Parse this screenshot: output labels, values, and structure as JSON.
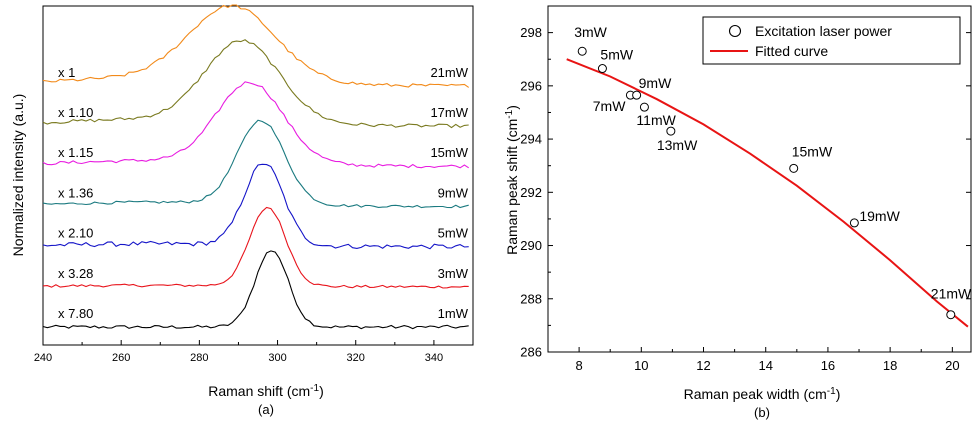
{
  "chart_data": [
    {
      "type": "line",
      "panel_label": "(a)",
      "xlabel_main": "Raman shift (cm",
      "xlabel_sup": "-1",
      "xlabel_end": ")",
      "ylabel": "Normalized intensity (a.u.)",
      "xlim": [
        240,
        350
      ],
      "x_ticks": [
        240,
        260,
        280,
        300,
        320,
        340
      ],
      "series": [
        {
          "name": "1mW",
          "multiplier": "x 7.80",
          "color": "#000000",
          "offset": 0.0,
          "center": 298.5,
          "width": 4.2,
          "amplitude": 2.3,
          "noise": 0.05
        },
        {
          "name": "3mW",
          "multiplier": "x 3.28",
          "color": "#e8141c",
          "offset": 1.2,
          "center": 297.5,
          "width": 4.6,
          "amplitude": 2.35,
          "noise": 0.04
        },
        {
          "name": "5mW",
          "multiplier": "x 2.10",
          "color": "#1515c8",
          "offset": 2.4,
          "center": 296.5,
          "width": 5.0,
          "amplitude": 2.45,
          "noise": 0.07
        },
        {
          "name": "9mW",
          "multiplier": "x 1.36",
          "color": "#1b7a80",
          "offset": 3.6,
          "center": 295.8,
          "width": 6.0,
          "amplitude": 2.5,
          "noise": 0.04
        },
        {
          "name": "15mW",
          "multiplier": "x 1.15",
          "color": "#e81ce0",
          "offset": 4.8,
          "center": 293.0,
          "width": 8.5,
          "amplitude": 2.4,
          "noise": 0.05
        },
        {
          "name": "17mW",
          "multiplier": "x 1.10",
          "color": "#7a7a20",
          "offset": 6.0,
          "center": 291.0,
          "width": 9.5,
          "amplitude": 2.4,
          "noise": 0.05
        },
        {
          "name": "21mW",
          "multiplier": "x 1",
          "color": "#f28a1a",
          "offset": 7.2,
          "center": 288.5,
          "width": 11.0,
          "amplitude": 2.2,
          "noise": 0.05
        }
      ]
    },
    {
      "type": "scatter",
      "panel_label": "(b)",
      "xlabel_main": "Raman peak width (cm",
      "xlabel_sup": "-1",
      "xlabel_end": ")",
      "ylabel_main": "Raman peak shift (cm",
      "ylabel_sup": "-1",
      "ylabel_end": ")",
      "xlim": [
        7,
        20.6
      ],
      "ylim": [
        286,
        299
      ],
      "x_ticks": [
        8,
        10,
        12,
        14,
        16,
        18,
        20
      ],
      "y_ticks": [
        286,
        288,
        290,
        292,
        294,
        296,
        298
      ],
      "points": [
        {
          "label": "3mW",
          "x": 8.1,
          "y": 297.3
        },
        {
          "label": "5mW",
          "x": 8.75,
          "y": 296.65
        },
        {
          "label": "7mW",
          "x": 9.65,
          "y": 295.65
        },
        {
          "label": "9mW",
          "x": 9.85,
          "y": 295.65
        },
        {
          "label": "11mW",
          "x": 10.1,
          "y": 295.2
        },
        {
          "label": "13mW",
          "x": 10.95,
          "y": 294.3
        },
        {
          "label": "15mW",
          "x": 14.9,
          "y": 292.9
        },
        {
          "label": "19mW",
          "x": 16.85,
          "y": 290.85
        },
        {
          "label": "21mW",
          "x": 19.95,
          "y": 287.4
        }
      ],
      "fit_curve": {
        "x": [
          7.6,
          9,
          10.5,
          12,
          13.5,
          15,
          16.5,
          18,
          19.5,
          20.5
        ],
        "y": [
          297.0,
          296.35,
          295.5,
          294.55,
          293.45,
          292.25,
          290.9,
          289.45,
          287.9,
          286.95
        ]
      },
      "legend": {
        "position": "top-right",
        "entries": [
          {
            "label": "Excitation laser power",
            "marker": "circle"
          },
          {
            "label": "Fitted curve",
            "marker": "line",
            "color": "#e81414"
          }
        ]
      }
    }
  ]
}
